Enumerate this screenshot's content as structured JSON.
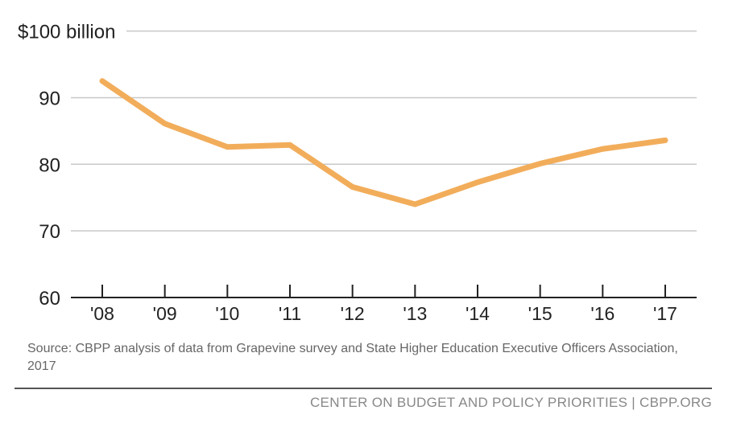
{
  "chart_data": {
    "type": "line",
    "categories": [
      "'08",
      "'09",
      "'10",
      "'11",
      "'12",
      "'13",
      "'14",
      "'15",
      "'16",
      "'17"
    ],
    "series": [
      {
        "values": [
          92.5,
          86.1,
          82.6,
          82.9,
          76.6,
          74.0,
          77.3,
          80.1,
          82.3,
          83.6
        ],
        "color": "#f2ad5b"
      }
    ],
    "ylim": [
      60,
      100
    ],
    "yticks": [
      60,
      70,
      80,
      90,
      100
    ],
    "ytick_labels": [
      "60",
      "70",
      "80",
      "90",
      "$100 billion"
    ],
    "grid": true,
    "title": "",
    "xlabel": "",
    "ylabel": ""
  },
  "source": "Source: CBPP analysis of data from Grapevine survey and State Higher Education Executive Officers Association, 2017",
  "footer": "CENTER ON BUDGET AND POLICY PRIORITIES | CBPP.ORG"
}
